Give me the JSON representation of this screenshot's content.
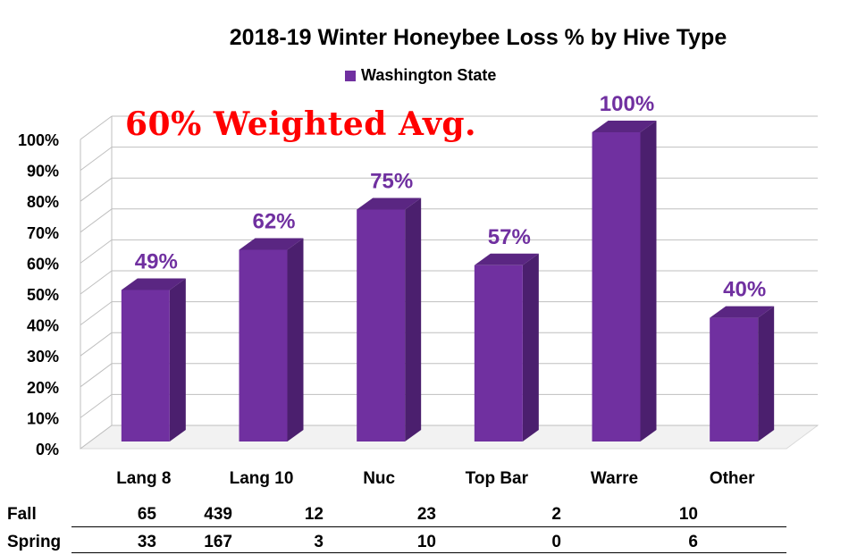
{
  "chart_data": {
    "type": "bar",
    "title": "2018-19 Winter Honeybee Loss % by Hive Type",
    "series": [
      {
        "name": "Washington State",
        "values": [
          49,
          62,
          75,
          57,
          100,
          40
        ]
      }
    ],
    "categories": [
      "Lang 8",
      "Lang 10",
      "Nuc",
      "Top Bar",
      "Warre",
      "Other"
    ],
    "data_labels": [
      "49%",
      "62%",
      "75%",
      "57%",
      "100%",
      "40%"
    ],
    "y_ticks": [
      "0%",
      "10%",
      "20%",
      "30%",
      "40%",
      "50%",
      "60%",
      "70%",
      "80%",
      "90%",
      "100%"
    ],
    "ylim": [
      0,
      100
    ],
    "grid": true,
    "legend": "top",
    "annotation": "60% Weighted Avg.",
    "colors": {
      "bar_front": "#7030a0",
      "bar_side": "#4b1f6e",
      "bar_top": "#5a2682",
      "label": "#7030a0",
      "annotation": "#ff0000"
    }
  },
  "table": {
    "rows": [
      {
        "label": "Fall",
        "values": [
          "65",
          "439",
          "12",
          "23",
          "2",
          "10"
        ]
      },
      {
        "label": "Spring",
        "values": [
          "33",
          "167",
          "3",
          "10",
          "0",
          "6"
        ]
      }
    ]
  }
}
